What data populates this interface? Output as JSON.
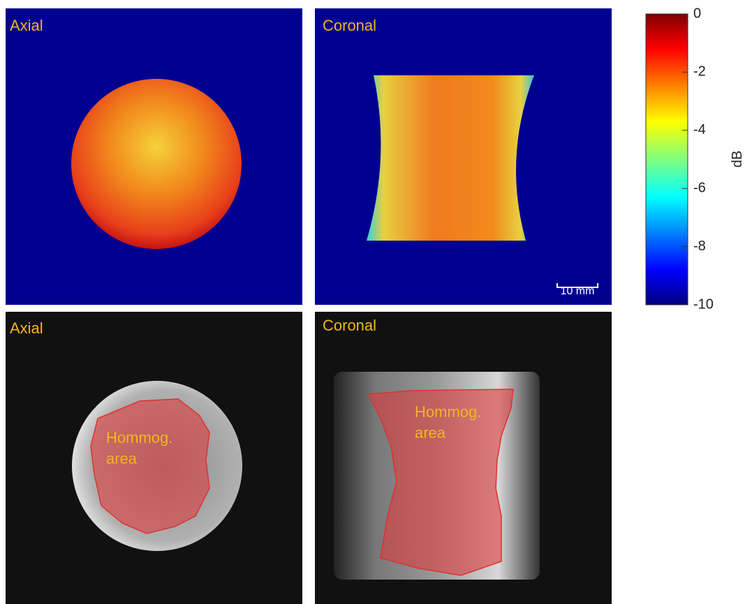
{
  "panels": [
    {
      "label": "Axial"
    },
    {
      "label": "Coronal",
      "scale_bar": "10 mm"
    },
    {
      "label": "Axial",
      "annotation": [
        "Hommog.",
        "area"
      ]
    },
    {
      "label": "Coronal",
      "annotation": [
        "Hommog.",
        "area"
      ]
    }
  ],
  "colorbar": {
    "label": "dB",
    "lim": [
      -10,
      0
    ],
    "ticks": [
      0,
      -2,
      -4,
      -6,
      -8,
      -10
    ]
  }
}
